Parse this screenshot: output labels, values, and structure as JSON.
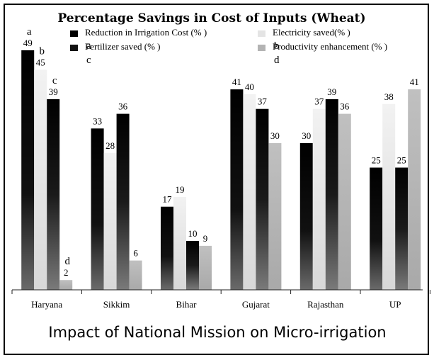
{
  "chart_data": {
    "type": "bar",
    "title": "Percentage Savings in Cost of Inputs (Wheat)",
    "subtitle": "Impact of National Mission on Micro-irrigation",
    "categories": [
      "Haryana",
      "Sikkim",
      "Bihar",
      "Gujarat",
      "Rajasthan",
      "UP"
    ],
    "series": [
      {
        "name": "Reduction in Irrigation Cost (% )",
        "letter": "a",
        "color": "#000000",
        "values": [
          49,
          33,
          17,
          41,
          30,
          25
        ]
      },
      {
        "name": "Electricity saved(% )",
        "letter": "b",
        "color": "#e4e4e4",
        "values": [
          45,
          28,
          19,
          40,
          37,
          38
        ]
      },
      {
        "name": "Fertilizer saved (% )",
        "letter": "c",
        "color": "#111111",
        "values": [
          39,
          36,
          10,
          37,
          39,
          25
        ]
      },
      {
        "name": "Productivity enhancement (% )",
        "letter": "d",
        "color": "#b3b3b3",
        "values": [
          2,
          6,
          9,
          30,
          36,
          41
        ]
      }
    ],
    "ylim": [
      0,
      50
    ],
    "grid": false,
    "legend": "top"
  }
}
